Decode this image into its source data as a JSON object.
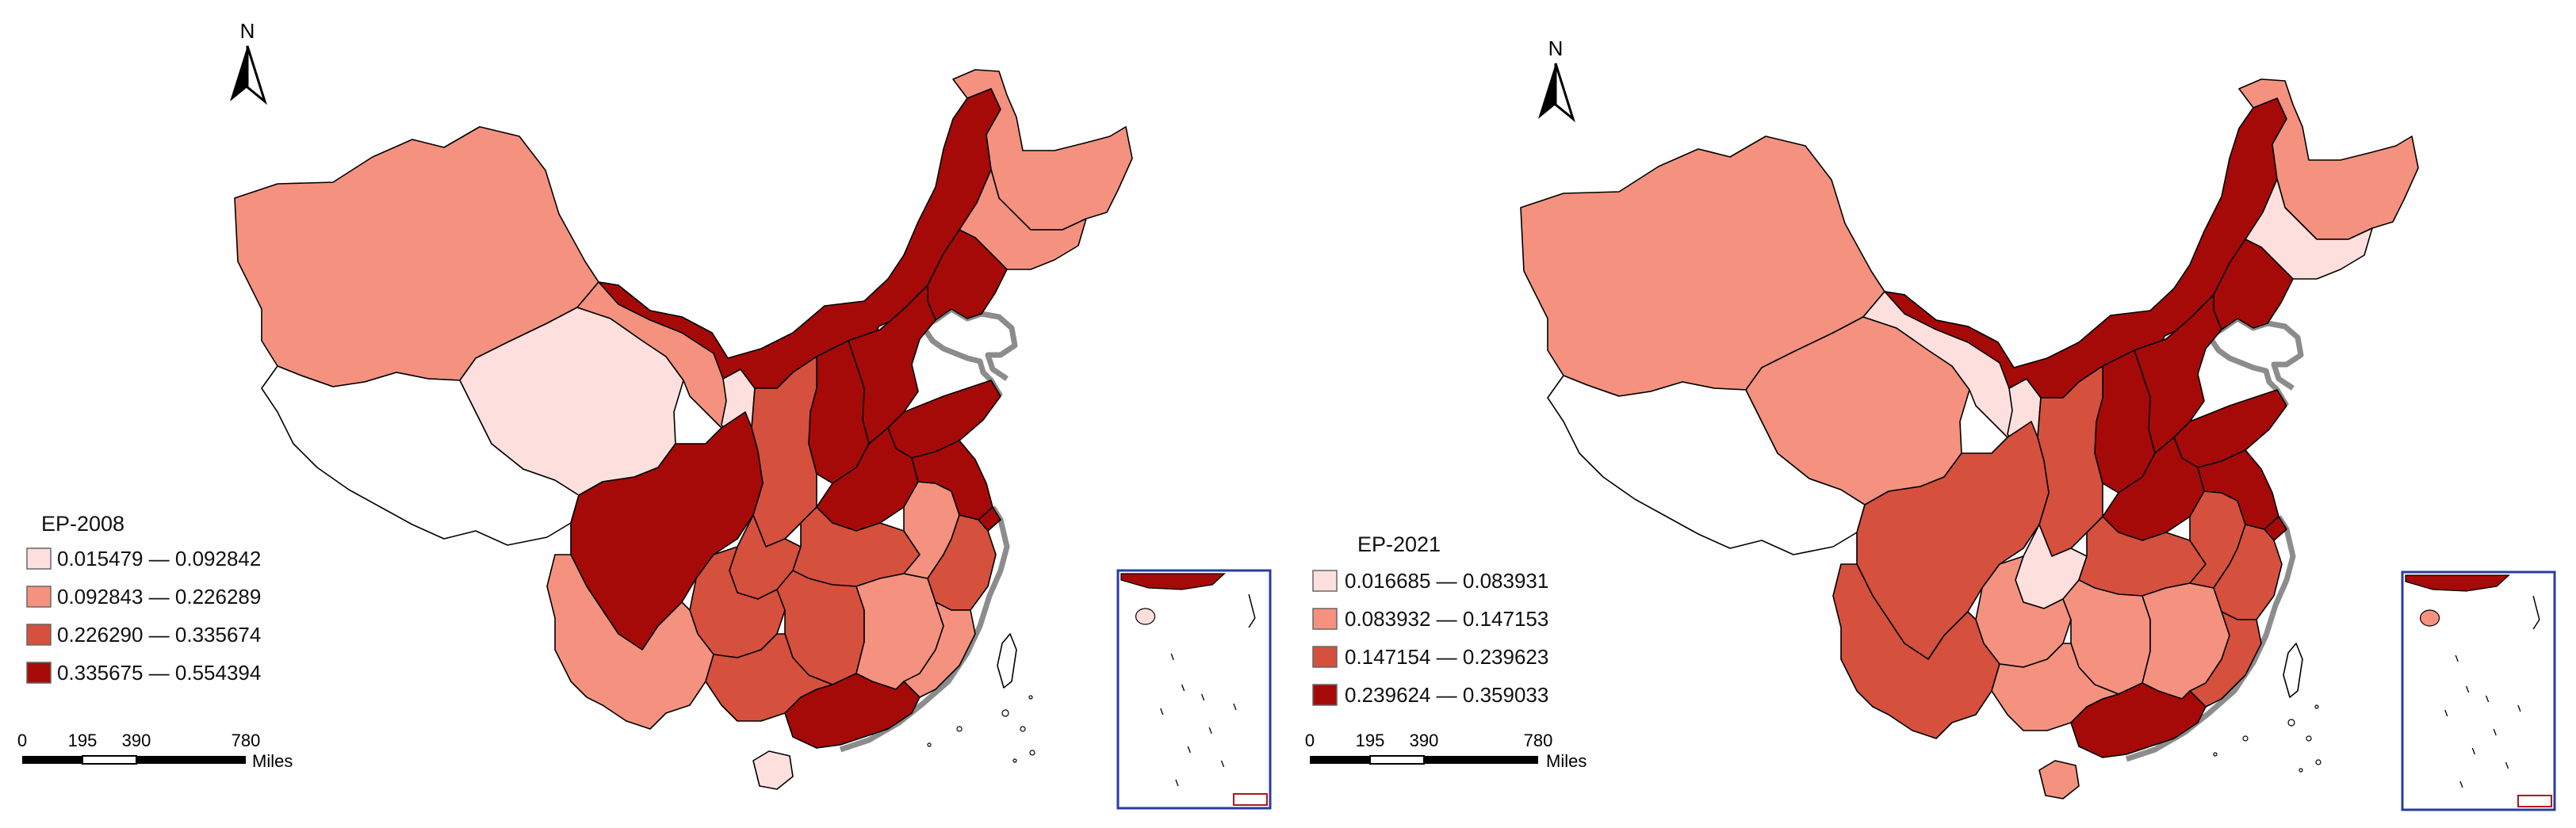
{
  "colors": {
    "class1": "#fde0de",
    "class2": "#f4927f",
    "class3": "#d6503e",
    "class4": "#a60a08",
    "nodata": "#ffffff",
    "outline": "#000000",
    "coast": "#8c8c8c",
    "inset_frame": "#2a3ca0",
    "inset_marker": "#b01818"
  },
  "maps": [
    {
      "legend": {
        "title": "EP-2008",
        "classes": [
          {
            "label": "0.015479 — 0.092842",
            "min": 0.015479,
            "max": 0.092842
          },
          {
            "label": "0.092843 — 0.226289",
            "min": 0.092843,
            "max": 0.226289
          },
          {
            "label": "0.226290 — 0.335674",
            "min": 0.22629,
            "max": 0.335674
          },
          {
            "label": "0.335675 — 0.554394",
            "min": 0.335675,
            "max": 0.554394
          }
        ]
      },
      "north_label": "N",
      "scalebar": {
        "ticks": [
          "0",
          "195",
          "390",
          "780"
        ],
        "unit": "Miles"
      },
      "regions": {
        "xinjiang": 2,
        "tibet": 0,
        "qinghai": 1,
        "gansu": 2,
        "inner_mongolia": 4,
        "heilongjiang": 2,
        "jilin": 2,
        "liaoning": 4,
        "beijing": 1,
        "tianjin": 4,
        "hebei": 4,
        "shanxi": 4,
        "shandong": 4,
        "henan": 4,
        "shaanxi": 3,
        "ningxia": 1,
        "sichuan": 4,
        "chongqing": 3,
        "yunnan": 2,
        "guizhou": 3,
        "hubei": 3,
        "hunan": 3,
        "jiangxi": 2,
        "anhui": 2,
        "jiangsu": 4,
        "zhejiang": 3,
        "fujian": 2,
        "guangxi": 3,
        "guangdong": 4,
        "hainan": 1,
        "shanghai": 4,
        "taiwan": 0
      }
    },
    {
      "legend": {
        "title": "EP-2021",
        "classes": [
          {
            "label": "0.016685 — 0.083931",
            "min": 0.016685,
            "max": 0.083931
          },
          {
            "label": "0.083932 — 0.147153",
            "min": 0.083932,
            "max": 0.147153
          },
          {
            "label": "0.147154 — 0.239623",
            "min": 0.147154,
            "max": 0.239623
          },
          {
            "label": "0.239624 — 0.359033",
            "min": 0.239624,
            "max": 0.359033
          }
        ]
      },
      "north_label": "N",
      "scalebar": {
        "ticks": [
          "0",
          "195",
          "390",
          "780"
        ],
        "unit": "Miles"
      },
      "regions": {
        "xinjiang": 2,
        "tibet": 0,
        "qinghai": 2,
        "gansu": 1,
        "inner_mongolia": 4,
        "heilongjiang": 2,
        "jilin": 1,
        "liaoning": 4,
        "beijing": 1,
        "tianjin": 4,
        "hebei": 4,
        "shanxi": 4,
        "shandong": 4,
        "henan": 4,
        "shaanxi": 3,
        "ningxia": 1,
        "sichuan": 3,
        "chongqing": 1,
        "yunnan": 3,
        "guizhou": 2,
        "hubei": 3,
        "hunan": 2,
        "jiangxi": 2,
        "anhui": 3,
        "jiangsu": 4,
        "zhejiang": 3,
        "fujian": 3,
        "guangxi": 2,
        "guangdong": 4,
        "hainan": 2,
        "shanghai": 4,
        "taiwan": 0
      }
    }
  ]
}
